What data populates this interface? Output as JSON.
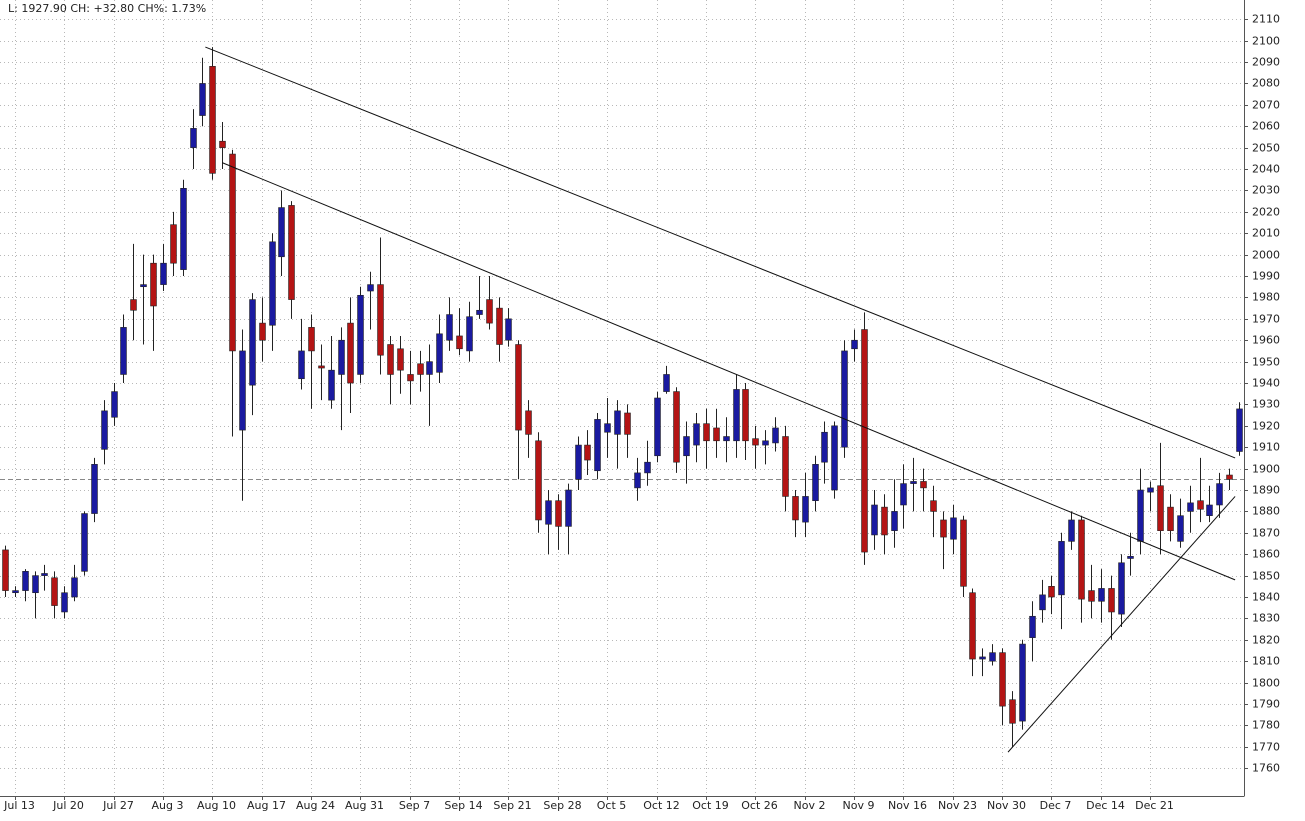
{
  "chart_data": {
    "type": "candlestick",
    "title": "L: 1927.90 CH: +32.80 CH%: 1.73%",
    "up_color": "#1a1aa0",
    "down_color": "#b41414",
    "grid": true,
    "ylim": [
      1747,
      2119
    ],
    "yticks": [
      1760,
      1770,
      1780,
      1790,
      1800,
      1810,
      1820,
      1830,
      1840,
      1850,
      1860,
      1870,
      1880,
      1890,
      1900,
      1910,
      1920,
      1930,
      1940,
      1950,
      1960,
      1970,
      1980,
      1990,
      2000,
      2010,
      2020,
      2030,
      2040,
      2050,
      2060,
      2070,
      2080,
      2090,
      2100,
      2110
    ],
    "xlim": [
      -0.5,
      125.5
    ],
    "xticks": [
      {
        "value": 1,
        "label": "Jul 13"
      },
      {
        "value": 6,
        "label": "Jul 20"
      },
      {
        "value": 11,
        "label": "Jul 27"
      },
      {
        "value": 16,
        "label": "Aug 3"
      },
      {
        "value": 21,
        "label": "Aug 10"
      },
      {
        "value": 26,
        "label": "Aug 17"
      },
      {
        "value": 31,
        "label": "Aug 24"
      },
      {
        "value": 36,
        "label": "Aug 31"
      },
      {
        "value": 41,
        "label": "Sep 7"
      },
      {
        "value": 46,
        "label": "Sep 14"
      },
      {
        "value": 51,
        "label": "Sep 21"
      },
      {
        "value": 56,
        "label": "Sep 28"
      },
      {
        "value": 61,
        "label": "Oct 5"
      },
      {
        "value": 66,
        "label": "Oct 12"
      },
      {
        "value": 71,
        "label": "Oct 19"
      },
      {
        "value": 76,
        "label": "Oct 26"
      },
      {
        "value": 81,
        "label": "Nov 2"
      },
      {
        "value": 86,
        "label": "Nov 9"
      },
      {
        "value": 91,
        "label": "Nov 16"
      },
      {
        "value": 96,
        "label": "Nov 23"
      },
      {
        "value": 101,
        "label": "Nov 30"
      },
      {
        "value": 106,
        "label": "Dec 7"
      },
      {
        "value": 111,
        "label": "Dec 14"
      },
      {
        "value": 116,
        "label": "Dec 21"
      }
    ],
    "open": [
      1862,
      1842,
      1843,
      1842,
      1850,
      1849,
      1833,
      1840,
      1852,
      1879,
      1909,
      1924,
      1944,
      1979,
      1985,
      1996,
      1986,
      2014,
      1993,
      2050,
      2065,
      2088,
      2053,
      2047,
      1918,
      1939,
      1968,
      1967,
      1999,
      2023,
      1942,
      1966,
      1948,
      1932,
      1944,
      1968,
      1944,
      1983,
      1986,
      1958,
      1956,
      1944,
      1949,
      1944,
      1945,
      1960,
      1962,
      1955,
      1972,
      1979,
      1975,
      1960,
      1958,
      1927,
      1913,
      1874,
      1885,
      1873,
      1895,
      1911,
      1899,
      1917,
      1916,
      1926,
      1891,
      1898,
      1906,
      1936,
      1936,
      1906,
      1911,
      1921,
      1919,
      1913,
      1913,
      1937,
      1914,
      1911,
      1912,
      1915,
      1887,
      1875,
      1885,
      1903,
      1890,
      1910,
      1956,
      1965,
      1869,
      1882,
      1871,
      1883,
      1893,
      1894,
      1885,
      1876,
      1867,
      1876,
      1842,
      1811,
      1810,
      1814,
      1792,
      1782,
      1821,
      1834,
      1845,
      1841,
      1866,
      1876,
      1843,
      1838,
      1844,
      1832,
      1858,
      1866,
      1889,
      1892,
      1882,
      1866,
      1880,
      1885,
      1878,
      1883,
      1897,
      1908
    ],
    "high": [
      1864,
      1845,
      1853,
      1852,
      1855,
      1852,
      1845,
      1855,
      1880,
      1905,
      1932,
      1940,
      1972,
      2005,
      2000,
      2000,
      2005,
      2020,
      2035,
      2068,
      2092,
      2097,
      2062,
      2049,
      1965,
      1982,
      1980,
      2010,
      2030,
      2025,
      1970,
      1972,
      1958,
      1962,
      1966,
      1980,
      1985,
      1992,
      2008,
      1962,
      1962,
      1955,
      1955,
      1958,
      1972,
      1980,
      1975,
      1978,
      1990,
      1990,
      1980,
      1975,
      1960,
      1932,
      1917,
      1890,
      1888,
      1893,
      1915,
      1918,
      1926,
      1933,
      1932,
      1930,
      1905,
      1913,
      1936,
      1948,
      1938,
      1922,
      1926,
      1928,
      1928,
      1924,
      1944,
      1940,
      1920,
      1918,
      1924,
      1920,
      1890,
      1898,
      1906,
      1922,
      1922,
      1960,
      1965,
      1973,
      1890,
      1888,
      1895,
      1902,
      1905,
      1900,
      1892,
      1880,
      1883,
      1878,
      1844,
      1816,
      1818,
      1816,
      1796,
      1820,
      1838,
      1848,
      1850,
      1870,
      1880,
      1878,
      1855,
      1853,
      1850,
      1860,
      1870,
      1900,
      1894,
      1912,
      1888,
      1886,
      1892,
      1905,
      1892,
      1898,
      1900,
      1931
    ],
    "low": [
      1840,
      1840,
      1838,
      1830,
      1843,
      1830,
      1830,
      1838,
      1850,
      1875,
      1902,
      1920,
      1940,
      1960,
      1958,
      1955,
      1983,
      1990,
      1990,
      2040,
      2060,
      2035,
      2040,
      1915,
      1885,
      1925,
      1950,
      1955,
      1990,
      1970,
      1937,
      1928,
      1932,
      1928,
      1918,
      1926,
      1940,
      1965,
      1944,
      1930,
      1935,
      1930,
      1936,
      1920,
      1940,
      1955,
      1953,
      1950,
      1970,
      1965,
      1950,
      1957,
      1895,
      1905,
      1870,
      1860,
      1862,
      1860,
      1890,
      1897,
      1895,
      1905,
      1900,
      1905,
      1885,
      1892,
      1903,
      1935,
      1898,
      1893,
      1903,
      1900,
      1905,
      1903,
      1905,
      1904,
      1900,
      1902,
      1908,
      1880,
      1868,
      1868,
      1880,
      1893,
      1886,
      1905,
      1950,
      1855,
      1862,
      1860,
      1863,
      1872,
      1880,
      1880,
      1868,
      1853,
      1860,
      1840,
      1803,
      1803,
      1808,
      1780,
      1770,
      1778,
      1810,
      1828,
      1832,
      1825,
      1862,
      1828,
      1830,
      1828,
      1820,
      1826,
      1850,
      1860,
      1880,
      1860,
      1866,
      1863,
      1870,
      1875,
      1875,
      1877,
      1890,
      1906
    ],
    "close": [
      1843,
      1843,
      1852,
      1850,
      1851,
      1836,
      1842,
      1849,
      1879,
      1902,
      1927,
      1936,
      1966,
      1974,
      1986,
      1976,
      1996,
      1996,
      2031,
      2059,
      2080,
      2038,
      2050,
      1955,
      1955,
      1979,
      1960,
      2006,
      2022,
      1979,
      1955,
      1955,
      1947,
      1946,
      1960,
      1940,
      1981,
      1986,
      1953,
      1944,
      1946,
      1941,
      1944,
      1950,
      1963,
      1972,
      1956,
      1971,
      1974,
      1968,
      1958,
      1970,
      1918,
      1916,
      1876,
      1885,
      1873,
      1890,
      1911,
      1904,
      1923,
      1921,
      1927,
      1916,
      1898,
      1903,
      1933,
      1944,
      1903,
      1915,
      1921,
      1913,
      1913,
      1915,
      1937,
      1913,
      1911,
      1913,
      1919,
      1887,
      1876,
      1887,
      1902,
      1917,
      1920,
      1955,
      1960,
      1861,
      1883,
      1869,
      1880,
      1893,
      1894,
      1891,
      1880,
      1868,
      1877,
      1845,
      1811,
      1812,
      1814,
      1789,
      1781,
      1818,
      1831,
      1841,
      1840,
      1866,
      1876,
      1839,
      1838,
      1844,
      1833,
      1856,
      1859,
      1890,
      1891,
      1871,
      1871,
      1878,
      1884,
      1881,
      1883,
      1893,
      1895,
      1927.9
    ],
    "reference_line": 1895.1,
    "trend_lines": [
      {
        "x": [
          20.3,
          124.6
        ],
        "y": [
          2097,
          1905
        ]
      },
      {
        "x": [
          22,
          124.6
        ],
        "y": [
          2043,
          1848
        ]
      },
      {
        "x": [
          101.6,
          124.6
        ],
        "y": [
          1767.5,
          1887
        ]
      }
    ]
  }
}
